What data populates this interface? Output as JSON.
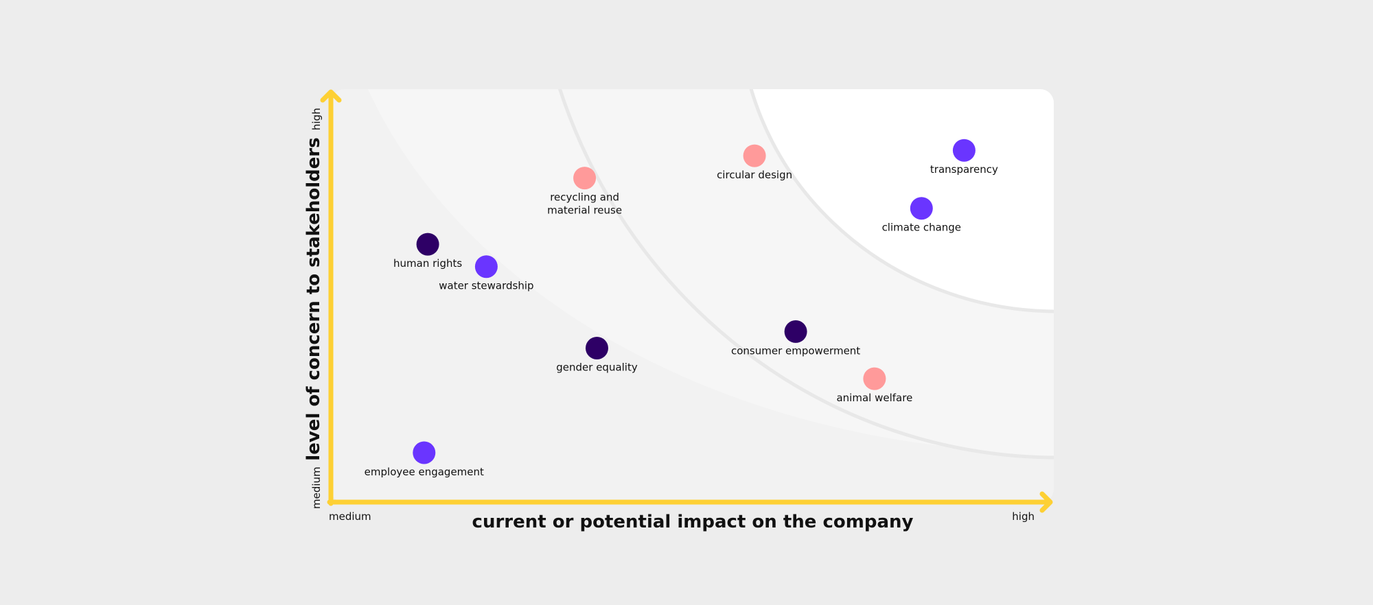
{
  "chart_data": {
    "type": "scatter",
    "xlabel": "current or potential impact on the company",
    "ylabel": "level of concern to stakeholders",
    "x_ticks": {
      "low": "medium",
      "high": "high"
    },
    "y_ticks": {
      "low": "medium",
      "high": "high"
    },
    "xlim": [
      0,
      100
    ],
    "ylim": [
      0,
      100
    ],
    "grid": false,
    "colors": {
      "background": "#ededed",
      "zone_outer": "#f2f2f2",
      "zone_middle": "#f6f6f6",
      "zone_inner": "#ffffff",
      "zone_line": "#e8e8e8",
      "axis": "#fdd034",
      "dark_purple": "#2e0066",
      "violet": "#6a35ff",
      "pink": "#ff9a9a"
    },
    "points": [
      {
        "label": "recycling and material reuse",
        "lines": [
          "recycling and",
          "material reuse"
        ],
        "x": 35.1,
        "y": 78.5,
        "color": "#ff9a9a"
      },
      {
        "label": "circular design",
        "lines": [
          "circular design"
        ],
        "x": 58.6,
        "y": 83.9,
        "color": "#ff9a9a"
      },
      {
        "label": "transparency",
        "lines": [
          "transparency"
        ],
        "x": 87.6,
        "y": 85.2,
        "color": "#6a35ff"
      },
      {
        "label": "climate change",
        "lines": [
          "climate change"
        ],
        "x": 81.7,
        "y": 71.2,
        "color": "#6a35ff"
      },
      {
        "label": "human rights",
        "lines": [
          "human rights"
        ],
        "x": 13.4,
        "y": 62.5,
        "color": "#2e0066"
      },
      {
        "label": "water stewardship",
        "lines": [
          "water stewardship"
        ],
        "x": 21.5,
        "y": 57.1,
        "color": "#6a35ff"
      },
      {
        "label": "gender equality",
        "lines": [
          "gender equality"
        ],
        "x": 36.8,
        "y": 37.4,
        "color": "#2e0066"
      },
      {
        "label": "consumer empowerment",
        "lines": [
          "consumer empowerment"
        ],
        "x": 64.3,
        "y": 41.4,
        "color": "#2e0066"
      },
      {
        "label": "animal welfare",
        "lines": [
          "animal welfare"
        ],
        "x": 75.2,
        "y": 30.0,
        "color": "#ff9a9a"
      },
      {
        "label": "employee engagement",
        "lines": [
          "employee engagement"
        ],
        "x": 12.9,
        "y": 12.1,
        "color": "#6a35ff"
      }
    ]
  }
}
